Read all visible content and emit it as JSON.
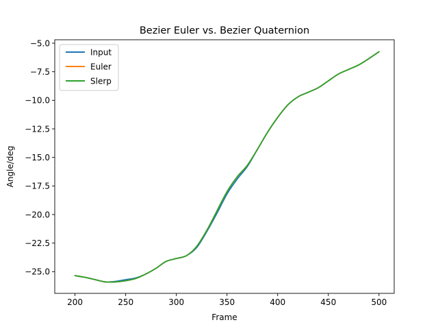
{
  "chart_data": {
    "type": "line",
    "title": "Bezier Euler vs. Bezier Quaternion",
    "xlabel": "Frame",
    "ylabel": "Angle/deg",
    "xlim": [
      180,
      515
    ],
    "ylim": [
      -26.9,
      -4.7
    ],
    "xticks": [
      200,
      250,
      300,
      350,
      400,
      450,
      500
    ],
    "xtick_labels": [
      "200",
      "250",
      "300",
      "350",
      "400",
      "450",
      "500"
    ],
    "yticks": [
      -25.0,
      -22.5,
      -20.0,
      -17.5,
      -15.0,
      -12.5,
      -10.0,
      -7.5,
      -5.0
    ],
    "ytick_labels": [
      "−25.0",
      "−22.5",
      "−20.0",
      "−17.5",
      "−15.0",
      "−12.5",
      "−10.0",
      "−7.5",
      "−5.0"
    ],
    "grid": false,
    "legend_position": "top-left",
    "x": [
      200,
      210,
      220,
      230,
      240,
      250,
      260,
      270,
      280,
      290,
      300,
      310,
      320,
      330,
      340,
      350,
      360,
      370,
      380,
      390,
      400,
      410,
      420,
      430,
      440,
      450,
      460,
      470,
      480,
      490,
      500
    ],
    "series": [
      {
        "name": "Input",
        "color": "#1f77b4",
        "values": [
          -25.35,
          -25.5,
          -25.7,
          -25.9,
          -25.85,
          -25.7,
          -25.55,
          -25.2,
          -24.7,
          -24.1,
          -23.85,
          -23.6,
          -22.9,
          -21.5,
          -19.9,
          -18.2,
          -16.9,
          -15.8,
          -14.3,
          -12.8,
          -11.5,
          -10.4,
          -9.7,
          -9.3,
          -8.9,
          -8.3,
          -7.7,
          -7.3,
          -6.9,
          -6.35,
          -5.75
        ]
      },
      {
        "name": "Euler",
        "color": "#ff7f0e",
        "values": [
          -25.35,
          -25.5,
          -25.7,
          -25.9,
          -25.9,
          -25.8,
          -25.6,
          -25.2,
          -24.7,
          -24.1,
          -23.85,
          -23.6,
          -22.8,
          -21.4,
          -19.7,
          -18.0,
          -16.7,
          -15.7,
          -14.3,
          -12.8,
          -11.5,
          -10.4,
          -9.7,
          -9.3,
          -8.9,
          -8.3,
          -7.7,
          -7.3,
          -6.9,
          -6.35,
          -5.75
        ]
      },
      {
        "name": "Slerp",
        "color": "#2ca02c",
        "values": [
          -25.35,
          -25.5,
          -25.7,
          -25.9,
          -25.9,
          -25.8,
          -25.6,
          -25.2,
          -24.7,
          -24.1,
          -23.85,
          -23.6,
          -22.8,
          -21.4,
          -19.7,
          -18.0,
          -16.7,
          -15.7,
          -14.3,
          -12.8,
          -11.5,
          -10.4,
          -9.7,
          -9.3,
          -8.9,
          -8.3,
          -7.7,
          -7.3,
          -6.9,
          -6.35,
          -5.75
        ]
      }
    ]
  }
}
